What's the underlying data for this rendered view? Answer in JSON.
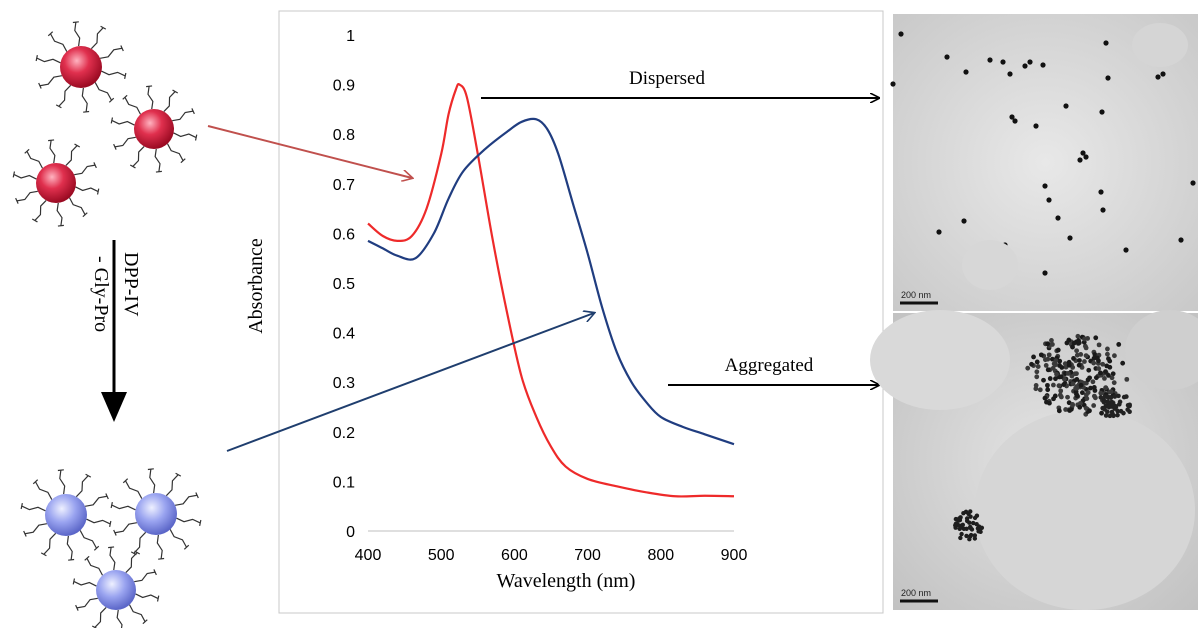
{
  "chart_data": {
    "type": "line",
    "xlabel": "Wavelength (nm)",
    "ylabel": "Absorbance",
    "xlim": [
      400,
      900
    ],
    "ylim": [
      0,
      1
    ],
    "x_ticks": [
      "400",
      "500",
      "600",
      "700",
      "800",
      "900"
    ],
    "y_ticks": [
      "0",
      "0.1",
      "0.2",
      "0.3",
      "0.4",
      "0.5",
      "0.6",
      "0.7",
      "0.8",
      "0.9",
      "1"
    ],
    "grid": false,
    "series": [
      {
        "color": "#ee2a2a",
        "points": [
          [
            400,
            0.62
          ],
          [
            420,
            0.595
          ],
          [
            440,
            0.585
          ],
          [
            460,
            0.595
          ],
          [
            480,
            0.65
          ],
          [
            500,
            0.76
          ],
          [
            510,
            0.84
          ],
          [
            520,
            0.89
          ],
          [
            525,
            0.9
          ],
          [
            535,
            0.875
          ],
          [
            550,
            0.76
          ],
          [
            570,
            0.59
          ],
          [
            590,
            0.44
          ],
          [
            610,
            0.31
          ],
          [
            630,
            0.23
          ],
          [
            650,
            0.17
          ],
          [
            670,
            0.13
          ],
          [
            700,
            0.105
          ],
          [
            740,
            0.09
          ],
          [
            780,
            0.078
          ],
          [
            820,
            0.07
          ],
          [
            860,
            0.071
          ],
          [
            900,
            0.07
          ]
        ]
      },
      {
        "color": "#203d80",
        "points": [
          [
            400,
            0.585
          ],
          [
            420,
            0.57
          ],
          [
            440,
            0.555
          ],
          [
            465,
            0.55
          ],
          [
            490,
            0.6
          ],
          [
            510,
            0.67
          ],
          [
            530,
            0.725
          ],
          [
            560,
            0.77
          ],
          [
            590,
            0.805
          ],
          [
            610,
            0.825
          ],
          [
            630,
            0.83
          ],
          [
            645,
            0.81
          ],
          [
            660,
            0.76
          ],
          [
            680,
            0.66
          ],
          [
            700,
            0.56
          ],
          [
            720,
            0.45
          ],
          [
            740,
            0.36
          ],
          [
            760,
            0.3
          ],
          [
            780,
            0.26
          ],
          [
            800,
            0.23
          ],
          [
            830,
            0.21
          ],
          [
            860,
            0.195
          ],
          [
            900,
            0.175
          ]
        ]
      }
    ]
  },
  "labels": {
    "dispersed": "Dispersed",
    "aggregated": "Aggregated",
    "reaction_line1": "DPP-IV",
    "reaction_line2": "- Gly-Pro"
  },
  "tem": {
    "scale_top": "200 nm",
    "scale_bottom": "200 nm"
  },
  "colors": {
    "dispersed_np": "#d9304a",
    "aggregated_np": "#8f9be8",
    "red_arrow": "#c0504d",
    "blue_arrow": "#1f3e6e"
  }
}
